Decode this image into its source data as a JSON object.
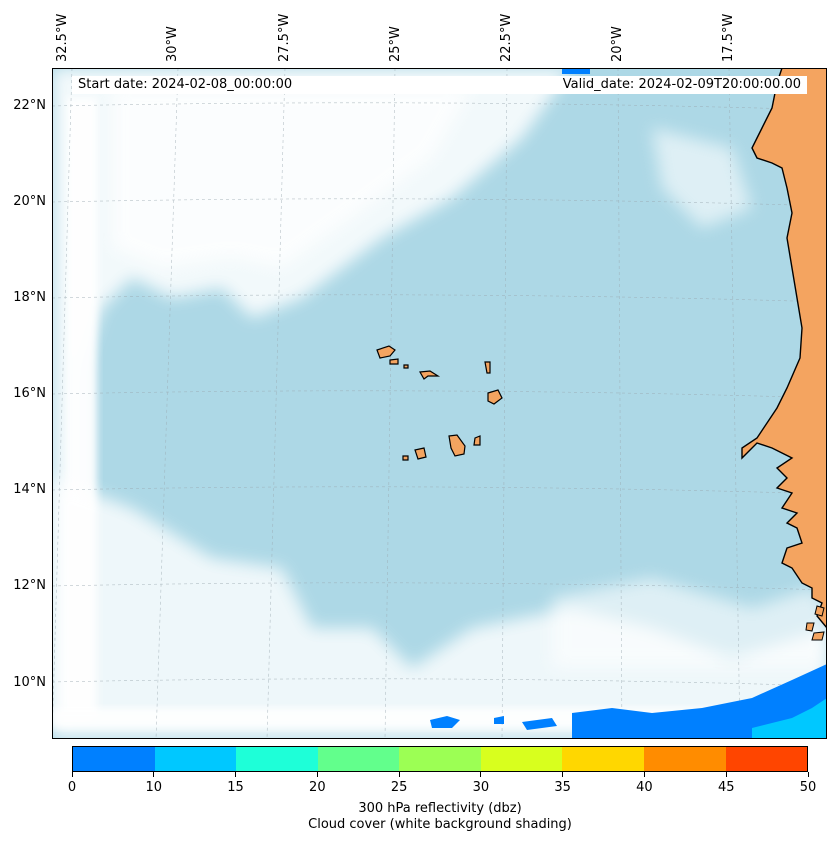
{
  "map": {
    "start_date": "Start date: 2024-02-08_00:00:00",
    "valid_date": "Valid_date: 2024-02-09T20:00:00.00",
    "lon_labels": [
      "32.5°W",
      "30°W",
      "27.5°W",
      "25°W",
      "22.5°W",
      "20°W",
      "17.5°W"
    ],
    "lat_labels": [
      "22°N",
      "20°N",
      "18°N",
      "16°N",
      "14°N",
      "12°N",
      "10°N"
    ],
    "colors": {
      "ocean": "#add8e6",
      "land": "#f4a460",
      "coastline": "#000000",
      "cloud": "#ffffff"
    }
  },
  "colorbar": {
    "label_line1": "300 hPa reflectivity (dbz)",
    "label_line2": "Cloud cover (white background shading)",
    "ticks": [
      "0",
      "10",
      "15",
      "20",
      "25",
      "30",
      "35",
      "40",
      "45",
      "50"
    ],
    "colors": [
      "#0080ff",
      "#00c8ff",
      "#1effd8",
      "#62ff8c",
      "#9cff54",
      "#d8ff1e",
      "#ffd700",
      "#ff8c00",
      "#ff4500"
    ]
  }
}
